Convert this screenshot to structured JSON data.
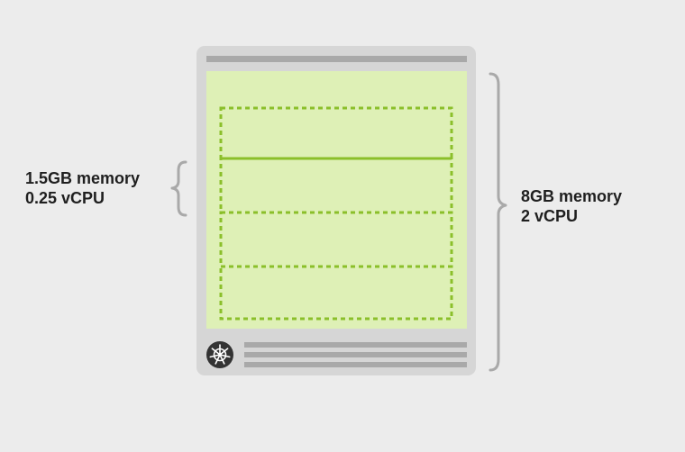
{
  "pod_label": {
    "memory": "1.5GB memory",
    "cpu": "0.25 vCPU"
  },
  "node_label": {
    "memory": "8GB memory",
    "cpu": "2 vCPU"
  },
  "node": {
    "pod_slot_count": 4,
    "icon": "kubernetes-helm-icon"
  },
  "colors": {
    "background": "#ececec",
    "node_frame": "#d6d6d6",
    "node_bars": "#a9a9a9",
    "capacity_area": "#def0b6",
    "pod_dashes": "#8bbf2a",
    "brace": "#a9a9a9",
    "text": "#1f1f1f"
  }
}
